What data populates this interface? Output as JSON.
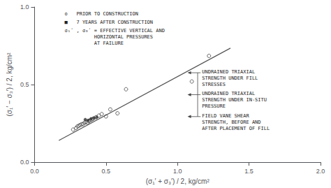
{
  "chart_data": {
    "type": "scatter",
    "xlabel": "(σ₁′ + σ₃′) / 2, kg/cm²",
    "ylabel": "(σ₁′ − σ₃′) / 2, kg/cm²",
    "xlim": [
      0,
      2.0
    ],
    "ylim": [
      0,
      1.0
    ],
    "xticks": [
      {
        "value": 0,
        "label": "0.0"
      },
      0.5,
      {
        "value": 1.0,
        "label": "1.0"
      },
      1.5,
      {
        "value": 2.0,
        "label": "2.0"
      }
    ],
    "yticks": [
      {
        "value": 0,
        "label": "0.0"
      },
      0.5,
      {
        "value": 1.0,
        "label": "1.0"
      }
    ],
    "grid": false,
    "series": [
      {
        "type": "scatter",
        "marker": "circle_open",
        "color": "#444444",
        "x": [
          0.27,
          0.29,
          0.3,
          0.31,
          0.32,
          0.33,
          0.34,
          0.35,
          0.36,
          0.37,
          0.38,
          0.39,
          0.4,
          0.41,
          0.43,
          0.45,
          0.47,
          0.5,
          0.53,
          0.58,
          0.64,
          1.1,
          1.22
        ],
        "values": [
          0.21,
          0.22,
          0.23,
          0.235,
          0.24,
          0.245,
          0.245,
          0.255,
          0.26,
          0.255,
          0.265,
          0.27,
          0.275,
          0.28,
          0.29,
          0.3,
          0.31,
          0.295,
          0.34,
          0.315,
          0.47,
          0.52,
          0.685
        ]
      },
      {
        "type": "scatter",
        "marker": "circle",
        "color": "#333333",
        "x": [
          0.355,
          0.375,
          0.395,
          0.415,
          0.435
        ],
        "values": [
          0.275,
          0.27,
          0.28,
          0.285,
          0.29
        ]
      },
      {
        "type": "line",
        "color": "#555555",
        "x": [
          0.17,
          1.37
        ],
        "values": [
          0.14,
          0.735
        ]
      }
    ],
    "annotations": [
      "o   PRIOR TO CONSTRUCTION",
      "■   7 YEARS AFTER CONSTRUCTION",
      "σ₁ʹ , σ₃ʹ = EFFECTIVE VERTICAL AND\n          HORIZONTAL PRESSURES\n          AT FAILURE",
      "UNDRAINED TRIAXIAL\nSTRENGTH UNDER FILL\nSTRESSES",
      "UNDRAINED TRIAXIAL\nSTRENGTH UNDER IN-SITU\nPRESSURE",
      "FIELD VANE SHEAR\nSTRENGTH, BEFORE AND\nAFTER PLACEMENT OF FILL"
    ]
  }
}
